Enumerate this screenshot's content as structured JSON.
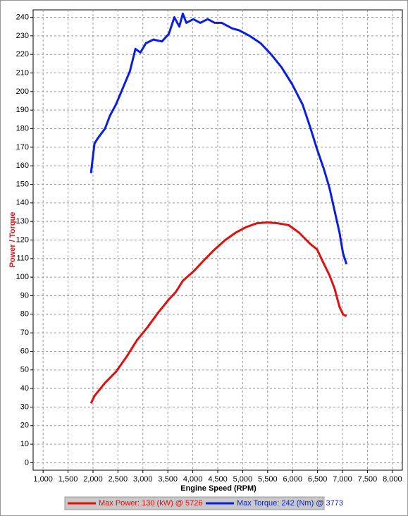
{
  "chart_data": {
    "type": "line",
    "x_label": "Engine Speed (RPM)",
    "y_label": "Power / Torque",
    "xlim": [
      800,
      8200
    ],
    "ylim": [
      -4,
      244
    ],
    "xticks": [
      {
        "value": 1000,
        "label": "1,000"
      },
      {
        "value": 1500,
        "label": "1,500"
      },
      {
        "value": 2000,
        "label": "2,000"
      },
      {
        "value": 2500,
        "label": "2,500"
      },
      {
        "value": 3000,
        "label": "3,000"
      },
      {
        "value": 3500,
        "label": "3,500"
      },
      {
        "value": 4000,
        "label": "4,000"
      },
      {
        "value": 4500,
        "label": "4,500"
      },
      {
        "value": 5000,
        "label": "5,000"
      },
      {
        "value": 5500,
        "label": "5,500"
      },
      {
        "value": 6000,
        "label": "6,000"
      },
      {
        "value": 6500,
        "label": "6,500"
      },
      {
        "value": 7000,
        "label": "7,000"
      },
      {
        "value": 7500,
        "label": "7,500"
      },
      {
        "value": 8000,
        "label": "8,000"
      }
    ],
    "yticks": [
      0,
      10,
      20,
      30,
      40,
      50,
      60,
      70,
      80,
      90,
      100,
      110,
      120,
      130,
      140,
      150,
      160,
      170,
      180,
      190,
      200,
      210,
      220,
      230,
      240
    ],
    "grid": true,
    "series": [
      {
        "name": "Max Power: 130 (kW) @ 5726",
        "color": "#e01010",
        "x": [
          1960,
          2030,
          2240,
          2460,
          2670,
          2880,
          3090,
          3310,
          3520,
          3660,
          3800,
          4010,
          4220,
          4440,
          4650,
          4860,
          5070,
          5280,
          5500,
          5710,
          5920,
          6130,
          6350,
          6490,
          6630,
          6740,
          6840,
          6940,
          7010,
          7080
        ],
        "values": [
          32,
          36,
          43,
          49,
          57,
          66,
          73,
          81,
          88,
          92,
          98,
          103,
          109,
          115,
          120,
          124,
          127,
          129,
          129.5,
          129,
          128,
          124,
          118,
          115,
          107,
          101,
          94,
          84,
          80,
          79
        ]
      },
      {
        "name": "Max Torque: 242 (Nm) @ 3773",
        "color": "#0a1ee0",
        "x": [
          1960,
          2030,
          2100,
          2240,
          2340,
          2460,
          2600,
          2740,
          2850,
          2950,
          3060,
          3210,
          3380,
          3520,
          3630,
          3730,
          3800,
          3870,
          4010,
          4150,
          4300,
          4440,
          4580,
          4790,
          4930,
          5140,
          5360,
          5570,
          5780,
          5990,
          6200,
          6350,
          6490,
          6630,
          6740,
          6840,
          6940,
          7010,
          7080
        ],
        "values": [
          156,
          172,
          175,
          180,
          187,
          193,
          202,
          211,
          223,
          221,
          226,
          228,
          227,
          231,
          240,
          235,
          242,
          237,
          239,
          237,
          239,
          237,
          237,
          234,
          233,
          230,
          226,
          220,
          213,
          204,
          193,
          181,
          169,
          158,
          148,
          136,
          124,
          113,
          107
        ]
      }
    ]
  }
}
